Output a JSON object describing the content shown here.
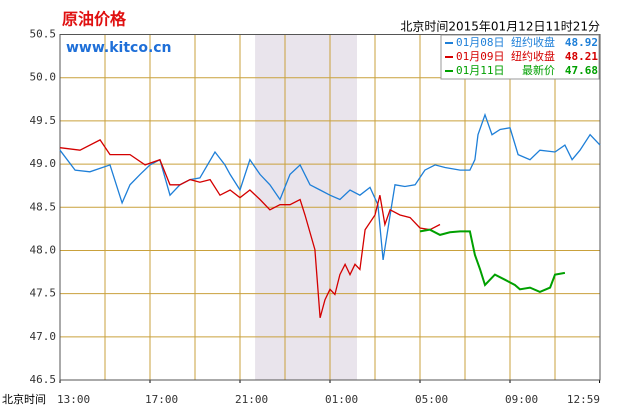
{
  "chart_data": {
    "type": "line",
    "title": "原油价格",
    "site": "www.kitco.cn",
    "timestamp": "北京时间2015年01月12日11时21分",
    "x_label": "北京时间",
    "xlim": [
      0,
      24
    ],
    "xticks": [
      {
        "value": 0,
        "label": "13:00"
      },
      {
        "value": 4,
        "label": "17:00"
      },
      {
        "value": 8,
        "label": "21:00"
      },
      {
        "value": 12,
        "label": "01:00"
      },
      {
        "value": 16,
        "label": "05:00"
      },
      {
        "value": 20,
        "label": "09:00"
      },
      {
        "value": 23.98,
        "label": "12:59"
      }
    ],
    "x_grid": [
      2,
      4,
      6,
      8,
      10,
      12,
      14,
      16,
      18,
      20,
      22
    ],
    "highlight": [
      8.67,
      13.2
    ],
    "ylim": [
      46.5,
      50.5
    ],
    "yticks": [
      46.5,
      {
        "value": 47,
        "label": "47.0"
      },
      47.5,
      {
        "value": 48,
        "label": "48.0"
      },
      48.5,
      {
        "value": 49,
        "label": "49.0"
      },
      49.5,
      {
        "value": 50,
        "label": "50.0"
      },
      50.5
    ],
    "grid": true,
    "series": [
      {
        "name": "01月08日",
        "note": "纽约收盘",
        "legend_value": 48.92,
        "color": "#1e7fd8",
        "x": [
          0,
          0.67,
          1.33,
          2.22,
          2.76,
          3.11,
          3.56,
          4,
          4.44,
          4.89,
          5.33,
          5.78,
          6.22,
          6.89,
          7.33,
          7.56,
          8,
          8.44,
          8.89,
          9.33,
          9.78,
          10.22,
          10.67,
          11.11,
          11.56,
          12,
          12.44,
          12.89,
          13.33,
          13.78,
          14.13,
          14.36,
          14.67,
          14.89,
          15.33,
          15.78,
          16.22,
          16.67,
          17.11,
          17.78,
          18.22,
          18.44,
          18.58,
          18.89,
          19.2,
          19.56,
          20,
          20.36,
          20.89,
          21.33,
          22,
          22.44,
          22.76,
          23.11,
          23.56,
          24
        ],
        "values": [
          49.16,
          48.93,
          48.91,
          48.99,
          48.55,
          48.76,
          48.88,
          48.99,
          49.05,
          48.64,
          48.76,
          48.82,
          48.84,
          49.14,
          48.99,
          48.88,
          48.7,
          49.05,
          48.88,
          48.76,
          48.59,
          48.88,
          48.99,
          48.76,
          48.7,
          48.64,
          48.59,
          48.7,
          48.64,
          48.73,
          48.53,
          47.89,
          48.41,
          48.76,
          48.74,
          48.76,
          48.93,
          48.99,
          48.96,
          48.93,
          48.93,
          49.05,
          49.34,
          49.57,
          49.34,
          49.4,
          49.42,
          49.11,
          49.05,
          49.16,
          49.14,
          49.22,
          49.05,
          49.16,
          49.34,
          49.22
        ]
      },
      {
        "name": "01月09日",
        "note": "纽约收盘",
        "legend_value": 48.21,
        "color": "#d40000",
        "x": [
          0,
          0.89,
          1.78,
          2.22,
          3.11,
          3.78,
          4.44,
          4.89,
          5.33,
          5.78,
          6.22,
          6.67,
          7.11,
          7.56,
          8,
          8.44,
          8.89,
          9.33,
          9.78,
          10.22,
          10.67,
          10.89,
          11.33,
          11.56,
          11.78,
          12,
          12.22,
          12.44,
          12.67,
          12.89,
          13.11,
          13.33,
          13.56,
          14,
          14.22,
          14.44,
          14.67,
          15.11,
          15.56,
          16,
          16.44,
          16.89
        ],
        "values": [
          49.19,
          49.16,
          49.28,
          49.11,
          49.11,
          48.99,
          49.05,
          48.76,
          48.76,
          48.82,
          48.79,
          48.82,
          48.64,
          48.7,
          48.61,
          48.7,
          48.59,
          48.47,
          48.53,
          48.53,
          48.59,
          48.41,
          48.01,
          47.22,
          47.43,
          47.55,
          47.49,
          47.72,
          47.84,
          47.72,
          47.84,
          47.78,
          48.24,
          48.41,
          48.64,
          48.3,
          48.47,
          48.41,
          48.38,
          48.26,
          48.24,
          48.3
        ]
      },
      {
        "name": "01月11日",
        "note": "最新价",
        "legend_value": 47.68,
        "color": "#00a000",
        "x": [
          16,
          16.44,
          16.89,
          17.33,
          17.78,
          18.22,
          18.44,
          18.67,
          18.89,
          19.33,
          19.78,
          20.22,
          20.44,
          20.89,
          21.33,
          21.78,
          22,
          22.44
        ],
        "values": [
          48.22,
          48.24,
          48.18,
          48.21,
          48.22,
          48.22,
          47.95,
          47.78,
          47.6,
          47.72,
          47.66,
          47.6,
          47.55,
          47.57,
          47.52,
          47.57,
          47.72,
          47.74
        ]
      }
    ]
  }
}
